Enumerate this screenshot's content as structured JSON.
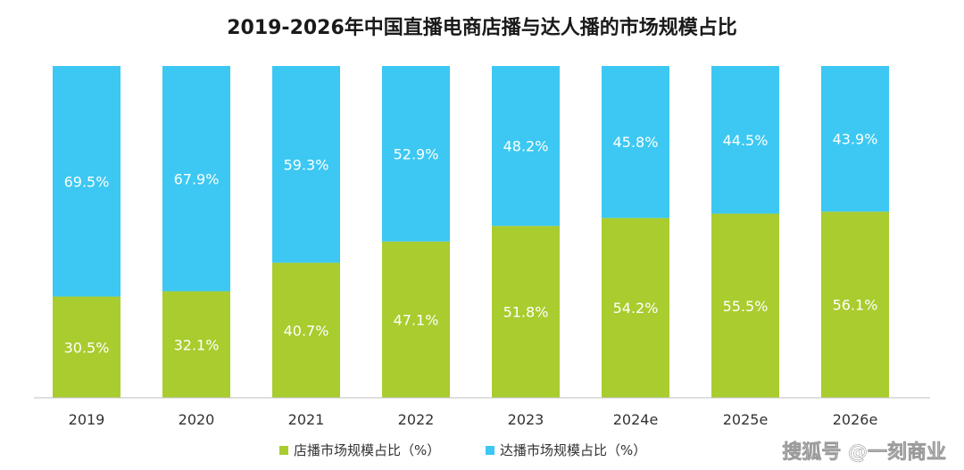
{
  "chart_data": {
    "type": "bar",
    "stacked": true,
    "title": "2019-2026年中国直播电商店播与达人播的市场规模占比",
    "categories": [
      "2019",
      "2020",
      "2021",
      "2022",
      "2023",
      "2024e",
      "2025e",
      "2026e"
    ],
    "series": [
      {
        "name": "店播市场规模占比（%）",
        "color": "#a9cc2e",
        "values": [
          30.5,
          32.1,
          40.7,
          47.1,
          51.8,
          54.2,
          55.5,
          56.1
        ],
        "labels": [
          "30.5%",
          "32.1%",
          "40.7%",
          "47.1%",
          "51.8%",
          "54.2%",
          "55.5%",
          "56.1%"
        ]
      },
      {
        "name": "达播市场规模占比（%）",
        "color": "#3cc8f2",
        "values": [
          69.5,
          67.9,
          59.3,
          52.9,
          48.2,
          45.8,
          44.5,
          43.9
        ],
        "labels": [
          "69.5%",
          "67.9%",
          "59.3%",
          "52.9%",
          "48.2%",
          "45.8%",
          "44.5%",
          "43.9%"
        ]
      }
    ],
    "ylim": [
      0,
      100
    ],
    "xlabel": "",
    "ylabel": "",
    "legend_position": "bottom"
  },
  "watermark": {
    "text": "搜狐号 @一刻商业"
  }
}
